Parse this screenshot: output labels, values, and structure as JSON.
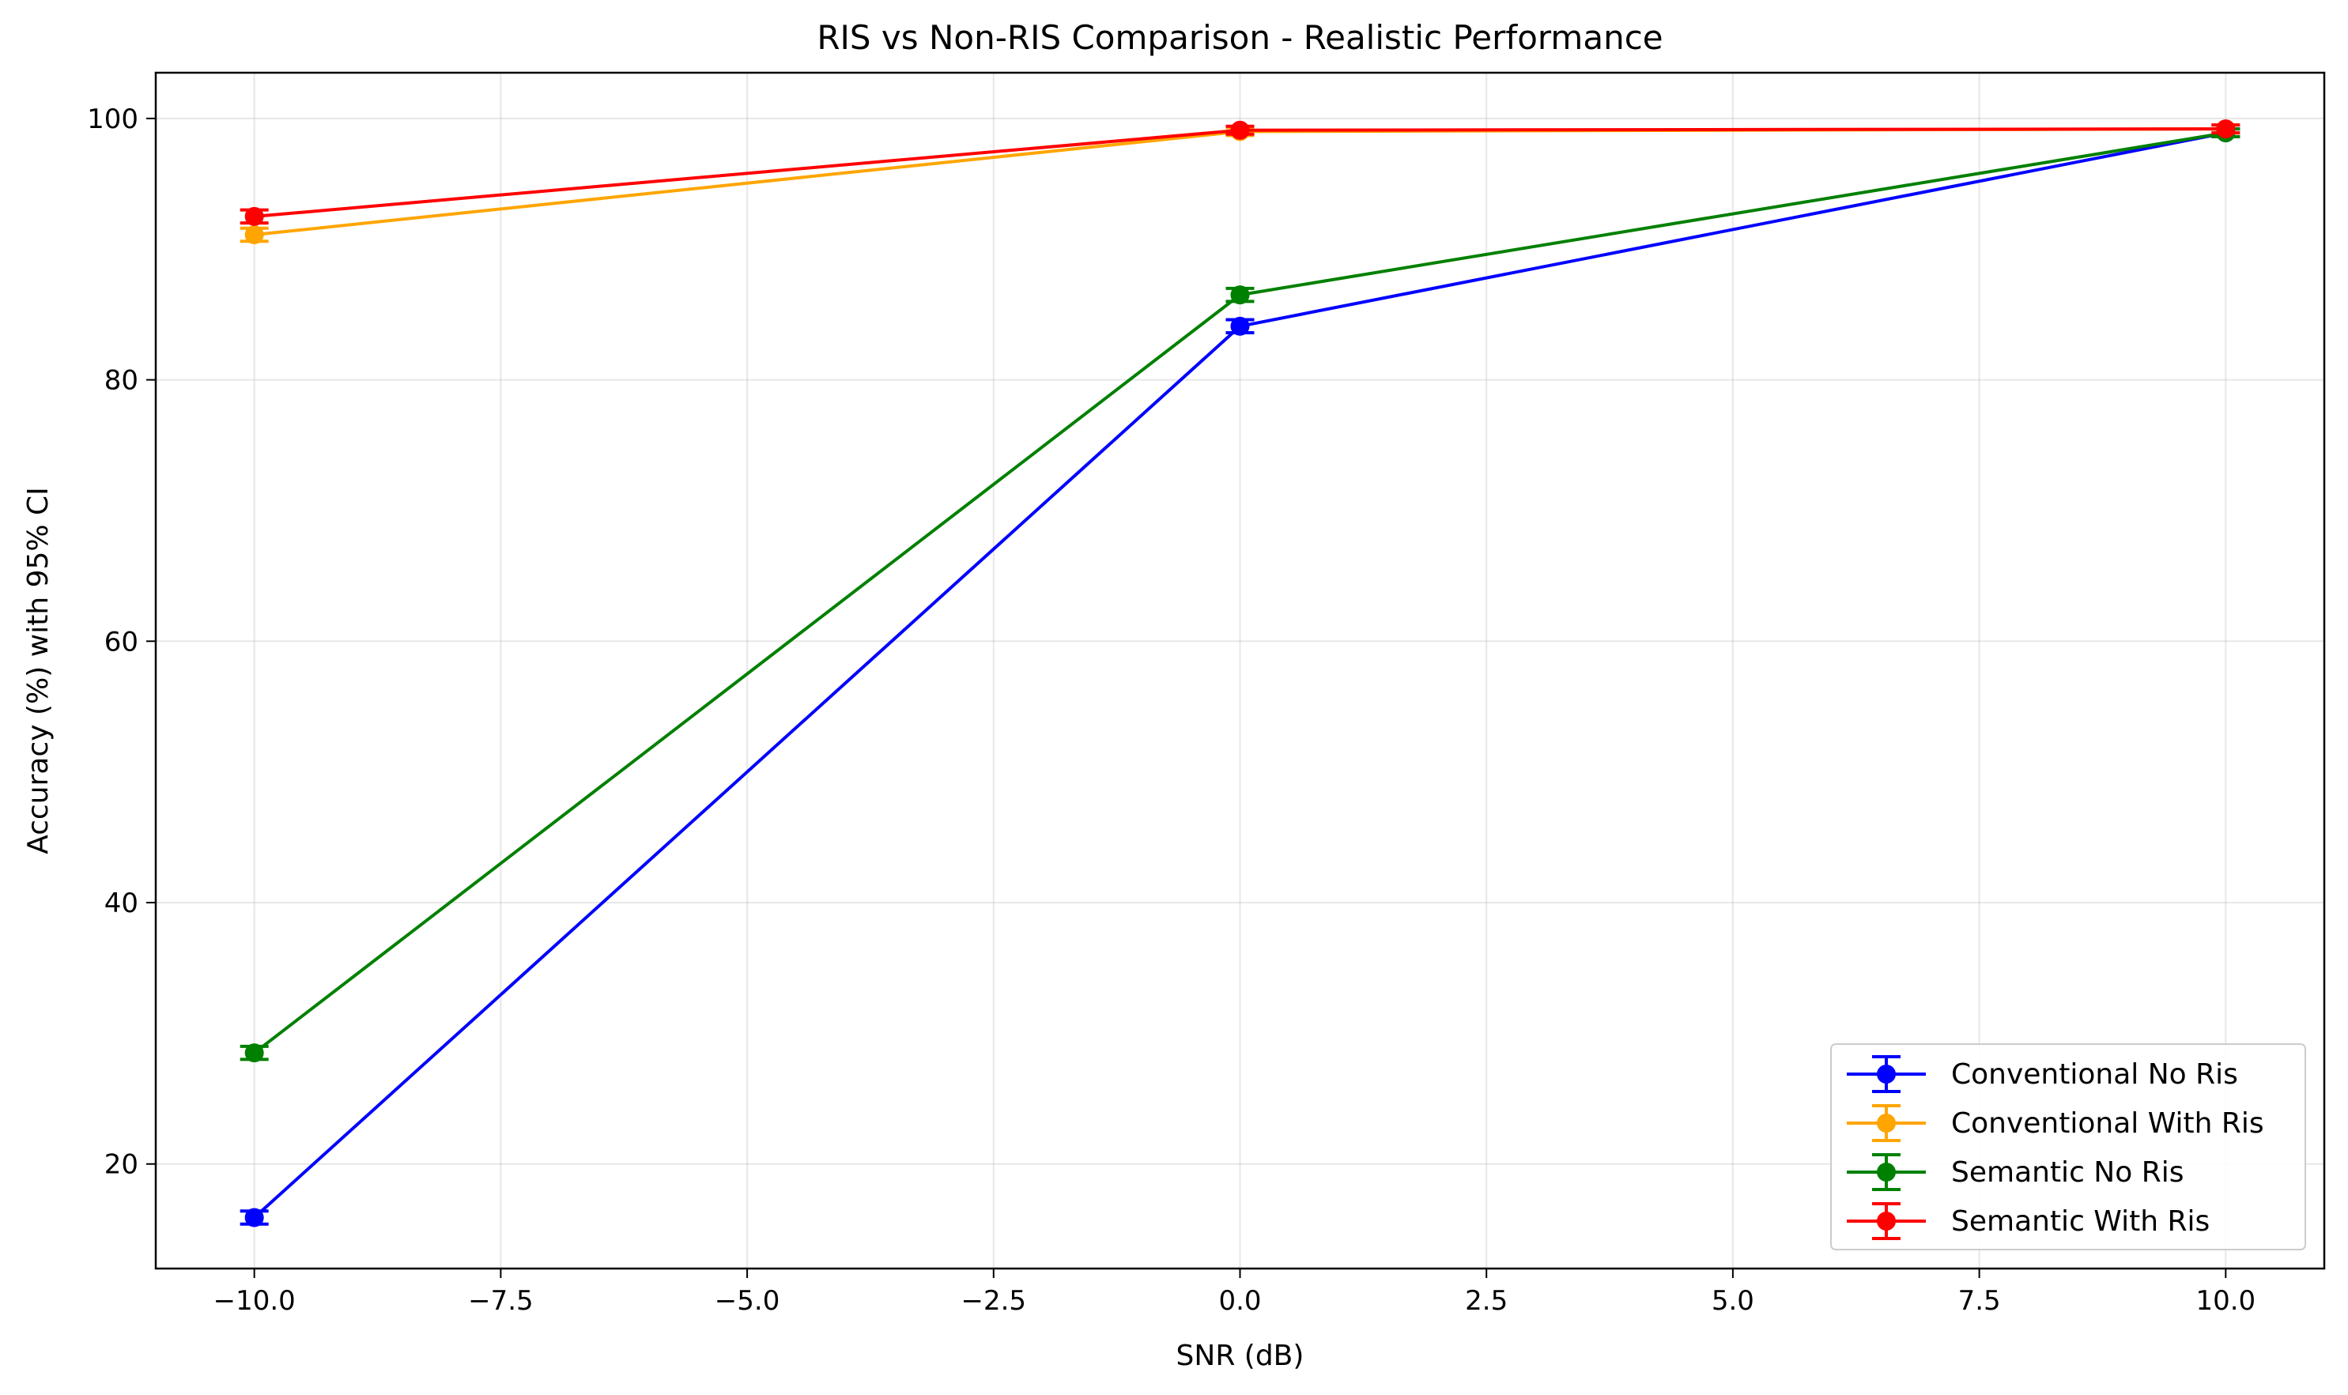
{
  "chart_data": {
    "type": "line",
    "title": "RIS vs Non-RIS Comparison - Realistic Performance",
    "xlabel": "SNR (dB)",
    "ylabel": "Accuracy (%) with 95% CI",
    "xlim": [
      -11.0,
      11.0
    ],
    "ylim": [
      12.0,
      103.5
    ],
    "x": [
      -10.0,
      0.0,
      10.0
    ],
    "xticks": [
      -10.0,
      -7.5,
      -5.0,
      -2.5,
      0.0,
      2.5,
      5.0,
      7.5,
      10.0
    ],
    "xtick_labels": [
      "−10.0",
      "−7.5",
      "−5.0",
      "−2.5",
      "0.0",
      "2.5",
      "5.0",
      "7.5",
      "10.0"
    ],
    "yticks": [
      20,
      40,
      60,
      80,
      100
    ],
    "ytick_labels": [
      "20",
      "40",
      "60",
      "80",
      "100"
    ],
    "grid": true,
    "error_bars": true,
    "legend_position": "lower-right",
    "series": [
      {
        "name": "Conventional No Ris",
        "color": "#0000ff",
        "values": [
          15.9,
          84.1,
          98.9
        ],
        "ci": [
          0.5,
          0.5,
          0.3
        ]
      },
      {
        "name": "Conventional With Ris",
        "color": "#ffa500",
        "values": [
          91.1,
          99.0,
          99.2
        ],
        "ci": [
          0.5,
          0.3,
          0.3
        ]
      },
      {
        "name": "Semantic No Ris",
        "color": "#008000",
        "values": [
          28.5,
          86.5,
          98.9
        ],
        "ci": [
          0.5,
          0.5,
          0.3
        ]
      },
      {
        "name": "Semantic With Ris",
        "color": "#ff0000",
        "values": [
          92.5,
          99.1,
          99.2
        ],
        "ci": [
          0.5,
          0.3,
          0.3
        ]
      }
    ]
  }
}
